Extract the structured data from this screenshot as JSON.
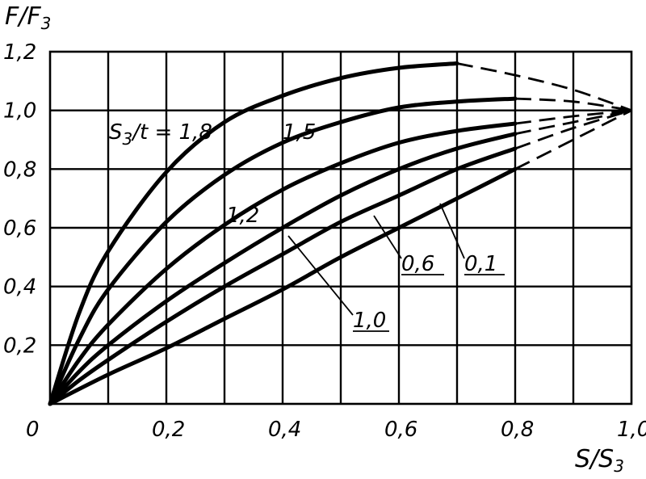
{
  "chart_data": {
    "type": "line",
    "title": "",
    "ylabel": {
      "main": "F/F",
      "sub": "3"
    },
    "xlabel": {
      "main": "S/S",
      "sub": "3"
    },
    "xlim": [
      0,
      1.0
    ],
    "ylim": [
      0,
      1.2
    ],
    "grid": true,
    "x_tick_labels": [
      "0",
      "0,2",
      "0,4",
      "0,6",
      "0,8",
      "1,0"
    ],
    "y_tick_labels": [
      "0,2",
      "0,4",
      "0,6",
      "0,8",
      "1,0",
      "1,2"
    ],
    "parameter_label": "S3/t = 1,8",
    "parameter_label_parts": {
      "a": "S",
      "sub": "3",
      "b": "/t = 1,8"
    },
    "series": [
      {
        "name": "1,8",
        "label": "1,8",
        "points": [
          [
            0,
            0
          ],
          [
            0.05,
            0.31
          ],
          [
            0.1,
            0.52
          ],
          [
            0.2,
            0.79
          ],
          [
            0.3,
            0.96
          ],
          [
            0.4,
            1.05
          ],
          [
            0.5,
            1.11
          ],
          [
            0.6,
            1.145
          ],
          [
            0.7,
            1.16
          ]
        ],
        "dashed_points": [
          [
            0.7,
            1.16
          ],
          [
            0.8,
            1.12
          ],
          [
            0.9,
            1.07
          ],
          [
            1.0,
            1.0
          ]
        ]
      },
      {
        "name": "1,5",
        "label": "1,5",
        "points": [
          [
            0,
            0
          ],
          [
            0.05,
            0.22
          ],
          [
            0.1,
            0.39
          ],
          [
            0.2,
            0.62
          ],
          [
            0.3,
            0.78
          ],
          [
            0.4,
            0.89
          ],
          [
            0.5,
            0.96
          ],
          [
            0.6,
            1.01
          ],
          [
            0.7,
            1.03
          ],
          [
            0.8,
            1.04
          ]
        ],
        "dashed_points": [
          [
            0.8,
            1.04
          ],
          [
            0.9,
            1.03
          ],
          [
            1.0,
            1.0
          ]
        ]
      },
      {
        "name": "1,2",
        "label": "1,2",
        "points": [
          [
            0,
            0
          ],
          [
            0.05,
            0.15
          ],
          [
            0.1,
            0.27
          ],
          [
            0.2,
            0.46
          ],
          [
            0.3,
            0.61
          ],
          [
            0.4,
            0.73
          ],
          [
            0.5,
            0.82
          ],
          [
            0.6,
            0.89
          ],
          [
            0.7,
            0.93
          ],
          [
            0.8,
            0.955
          ]
        ],
        "dashed_points": [
          [
            0.8,
            0.955
          ],
          [
            0.9,
            0.98
          ],
          [
            1.0,
            1.0
          ]
        ]
      },
      {
        "name": "1,0",
        "label": "1,0",
        "points": [
          [
            0,
            0
          ],
          [
            0.05,
            0.11
          ],
          [
            0.1,
            0.2
          ],
          [
            0.2,
            0.35
          ],
          [
            0.3,
            0.48
          ],
          [
            0.4,
            0.6
          ],
          [
            0.5,
            0.71
          ],
          [
            0.6,
            0.8
          ],
          [
            0.7,
            0.87
          ],
          [
            0.8,
            0.92
          ]
        ],
        "dashed_points": [
          [
            0.8,
            0.92
          ],
          [
            0.9,
            0.96
          ],
          [
            1.0,
            1.0
          ]
        ]
      },
      {
        "name": "0,6",
        "label": "0,6",
        "points": [
          [
            0,
            0
          ],
          [
            0.05,
            0.08
          ],
          [
            0.1,
            0.15
          ],
          [
            0.2,
            0.28
          ],
          [
            0.3,
            0.4
          ],
          [
            0.4,
            0.51
          ],
          [
            0.5,
            0.62
          ],
          [
            0.6,
            0.71
          ],
          [
            0.7,
            0.8
          ],
          [
            0.8,
            0.87
          ]
        ],
        "dashed_points": [
          [
            0.8,
            0.87
          ],
          [
            0.9,
            0.94
          ],
          [
            1.0,
            1.0
          ]
        ]
      },
      {
        "name": "0,1",
        "label": "0,1",
        "points": [
          [
            0,
            0
          ],
          [
            0.1,
            0.1
          ],
          [
            0.2,
            0.19
          ],
          [
            0.3,
            0.29
          ],
          [
            0.4,
            0.39
          ],
          [
            0.5,
            0.5
          ],
          [
            0.6,
            0.6
          ],
          [
            0.7,
            0.7
          ],
          [
            0.8,
            0.8
          ]
        ],
        "dashed_points": [
          [
            0.8,
            0.8
          ],
          [
            0.9,
            0.9
          ],
          [
            1.0,
            1.0
          ]
        ]
      }
    ]
  }
}
